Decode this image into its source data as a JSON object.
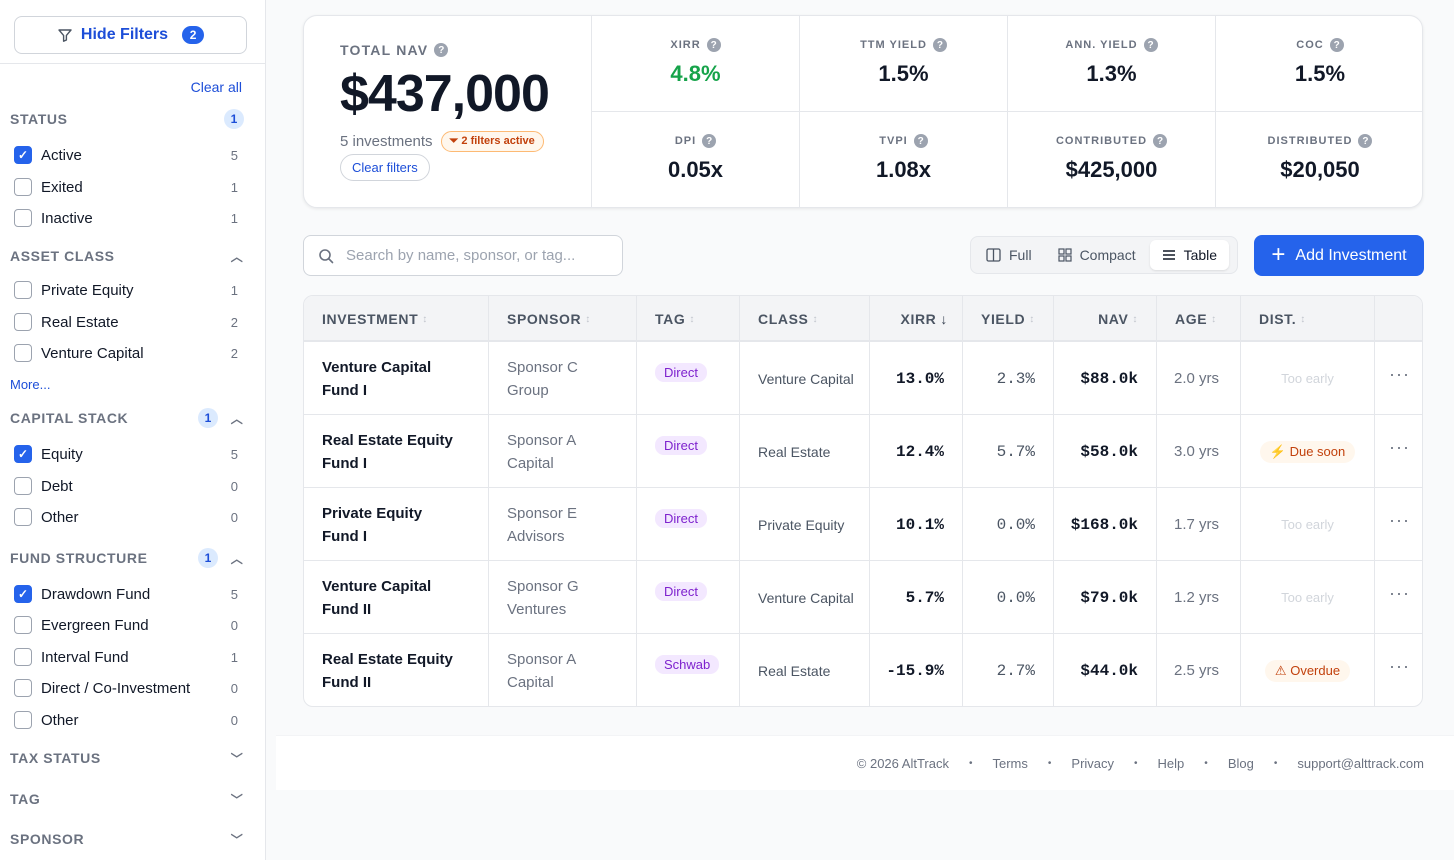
{
  "sidebar": {
    "hide_filters": "Hide Filters",
    "hide_filters_count": "2",
    "clear_all": "Clear all",
    "more": "More...",
    "sections": {
      "status": {
        "title": "STATUS",
        "count": "1",
        "options": [
          {
            "label": "Active",
            "count": "5",
            "checked": true
          },
          {
            "label": "Exited",
            "count": "1",
            "checked": false
          },
          {
            "label": "Inactive",
            "count": "1",
            "checked": false
          }
        ]
      },
      "asset_class": {
        "title": "ASSET CLASS",
        "options": [
          {
            "label": "Private Equity",
            "count": "1",
            "checked": false
          },
          {
            "label": "Real Estate",
            "count": "2",
            "checked": false
          },
          {
            "label": "Venture Capital",
            "count": "2",
            "checked": false
          }
        ]
      },
      "capital_stack": {
        "title": "CAPITAL STACK",
        "count": "1",
        "options": [
          {
            "label": "Equity",
            "count": "5",
            "checked": true
          },
          {
            "label": "Debt",
            "count": "0",
            "checked": false
          },
          {
            "label": "Other",
            "count": "0",
            "checked": false
          }
        ]
      },
      "fund_structure": {
        "title": "FUND STRUCTURE",
        "count": "1",
        "options": [
          {
            "label": "Drawdown Fund",
            "count": "5",
            "checked": true
          },
          {
            "label": "Evergreen Fund",
            "count": "0",
            "checked": false
          },
          {
            "label": "Interval Fund",
            "count": "1",
            "checked": false
          },
          {
            "label": "Direct / Co-Investment",
            "count": "0",
            "checked": false
          },
          {
            "label": "Other",
            "count": "0",
            "checked": false
          }
        ]
      },
      "tax_status": {
        "title": "TAX STATUS"
      },
      "tag": {
        "title": "TAG"
      },
      "sponsor": {
        "title": "SPONSOR"
      }
    }
  },
  "summary": {
    "nav_label": "TOTAL NAV",
    "nav_value": "$437,000",
    "investments": "5 investments",
    "filters_active": "2 filters active",
    "clear_filters": "Clear filters",
    "metrics": [
      {
        "label": "XIRR",
        "value": "4.8%",
        "positive": true
      },
      {
        "label": "TTM YIELD",
        "value": "1.5%"
      },
      {
        "label": "ANN. YIELD",
        "value": "1.3%"
      },
      {
        "label": "COC",
        "value": "1.5%"
      },
      {
        "label": "DPI",
        "value": "0.05x"
      },
      {
        "label": "TVPI",
        "value": "1.08x"
      },
      {
        "label": "CONTRIBUTED",
        "value": "$425,000"
      },
      {
        "label": "DISTRIBUTED",
        "value": "$20,050"
      }
    ]
  },
  "toolbar": {
    "search_placeholder": "Search by name, sponsor, or tag...",
    "views": [
      "Full",
      "Compact",
      "Table"
    ],
    "active_view": "Table",
    "add_investment": "Add Investment"
  },
  "table": {
    "columns": [
      "INVESTMENT",
      "SPONSOR",
      "TAG",
      "CLASS",
      "XIRR",
      "YIELD",
      "NAV",
      "AGE",
      "DIST."
    ],
    "sorted_column": "XIRR",
    "rows": [
      {
        "name_1": "Venture Capital",
        "name_2": "Fund I",
        "sponsor_1": "Sponsor C",
        "sponsor_2": "Group",
        "tag": "Direct",
        "class": "Venture Capital",
        "xirr": "13.0%",
        "yield": "2.3%",
        "nav": "$88.0k",
        "age": "2.0 yrs",
        "dist": "Too early",
        "dist_state": "early"
      },
      {
        "name_1": "Real Estate Equity",
        "name_2": "Fund I",
        "sponsor_1": "Sponsor A",
        "sponsor_2": "Capital",
        "tag": "Direct",
        "class": "Real Estate",
        "xirr": "12.4%",
        "yield": "5.7%",
        "nav": "$58.0k",
        "age": "3.0 yrs",
        "dist": "Due soon",
        "dist_state": "due"
      },
      {
        "name_1": "Private Equity",
        "name_2": "Fund I",
        "sponsor_1": "Sponsor E",
        "sponsor_2": "Advisors",
        "tag": "Direct",
        "class": "Private Equity",
        "xirr": "10.1%",
        "yield": "0.0%",
        "nav": "$168.0k",
        "age": "1.7 yrs",
        "dist": "Too early",
        "dist_state": "early"
      },
      {
        "name_1": "Venture Capital",
        "name_2": "Fund II",
        "sponsor_1": "Sponsor G",
        "sponsor_2": "Ventures",
        "tag": "Direct",
        "class": "Venture Capital",
        "xirr": "5.7%",
        "yield": "0.0%",
        "nav": "$79.0k",
        "age": "1.2 yrs",
        "dist": "Too early",
        "dist_state": "early"
      },
      {
        "name_1": "Real Estate Equity",
        "name_2": "Fund II",
        "sponsor_1": "Sponsor A",
        "sponsor_2": "Capital",
        "tag": "Schwab",
        "class": "Real Estate",
        "xirr": "-15.9%",
        "yield": "2.7%",
        "nav": "$44.0k",
        "age": "2.5 yrs",
        "dist": "Overdue",
        "dist_state": "overdue"
      }
    ]
  },
  "footer": {
    "copyright": "© 2026 AltTrack",
    "links": [
      "Terms",
      "Privacy",
      "Help",
      "Blog",
      "support@alttrack.com"
    ]
  },
  "colors": {
    "accent": "#2563eb",
    "positive": "#16a34a",
    "warning": "#c2410c",
    "tag_bg": "#f3e8ff",
    "tag_text": "#7e22ce"
  }
}
